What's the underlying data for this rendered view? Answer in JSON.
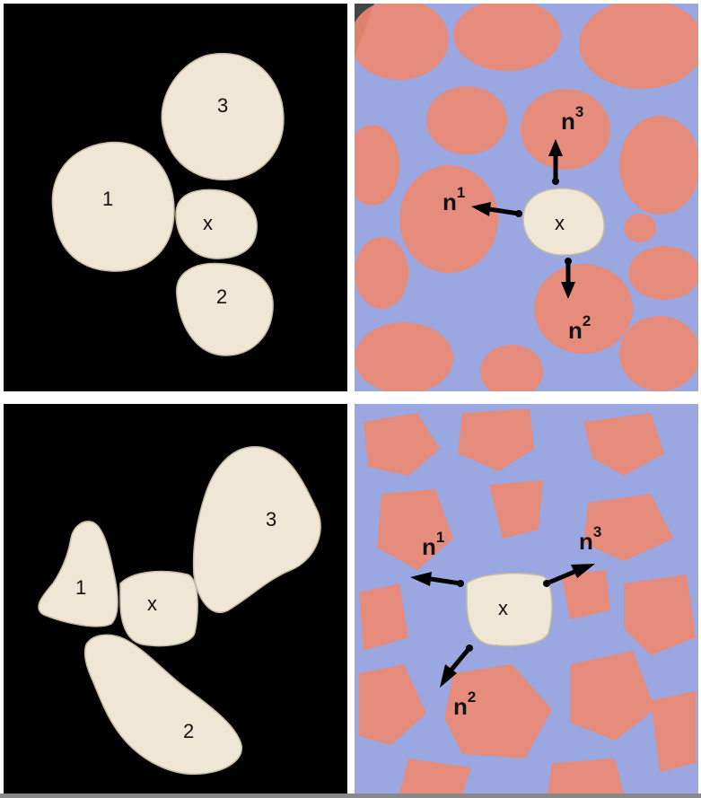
{
  "panels": {
    "top_left": {
      "labels": {
        "g1": "1",
        "g2": "2",
        "g3": "3",
        "gx": "x"
      }
    },
    "top_right": {
      "labels": {
        "gx": "x",
        "n1": "n",
        "n1s": "1",
        "n2": "n",
        "n2s": "2",
        "n3": "n",
        "n3s": "3"
      }
    },
    "bottom_left": {
      "labels": {
        "g1": "1",
        "g2": "2",
        "g3": "3",
        "gx": "x"
      }
    },
    "bottom_right": {
      "labels": {
        "gx": "x",
        "n1": "n",
        "n1s": "1",
        "n2": "n",
        "n2s": "2",
        "n3": "n",
        "n3s": "3"
      }
    }
  },
  "colors": {
    "background_3d": "#000000",
    "grain": "#efe6d6",
    "field_blue": "#9aa7e0",
    "field_red": "#ee8a72",
    "arrow": "#000000"
  }
}
